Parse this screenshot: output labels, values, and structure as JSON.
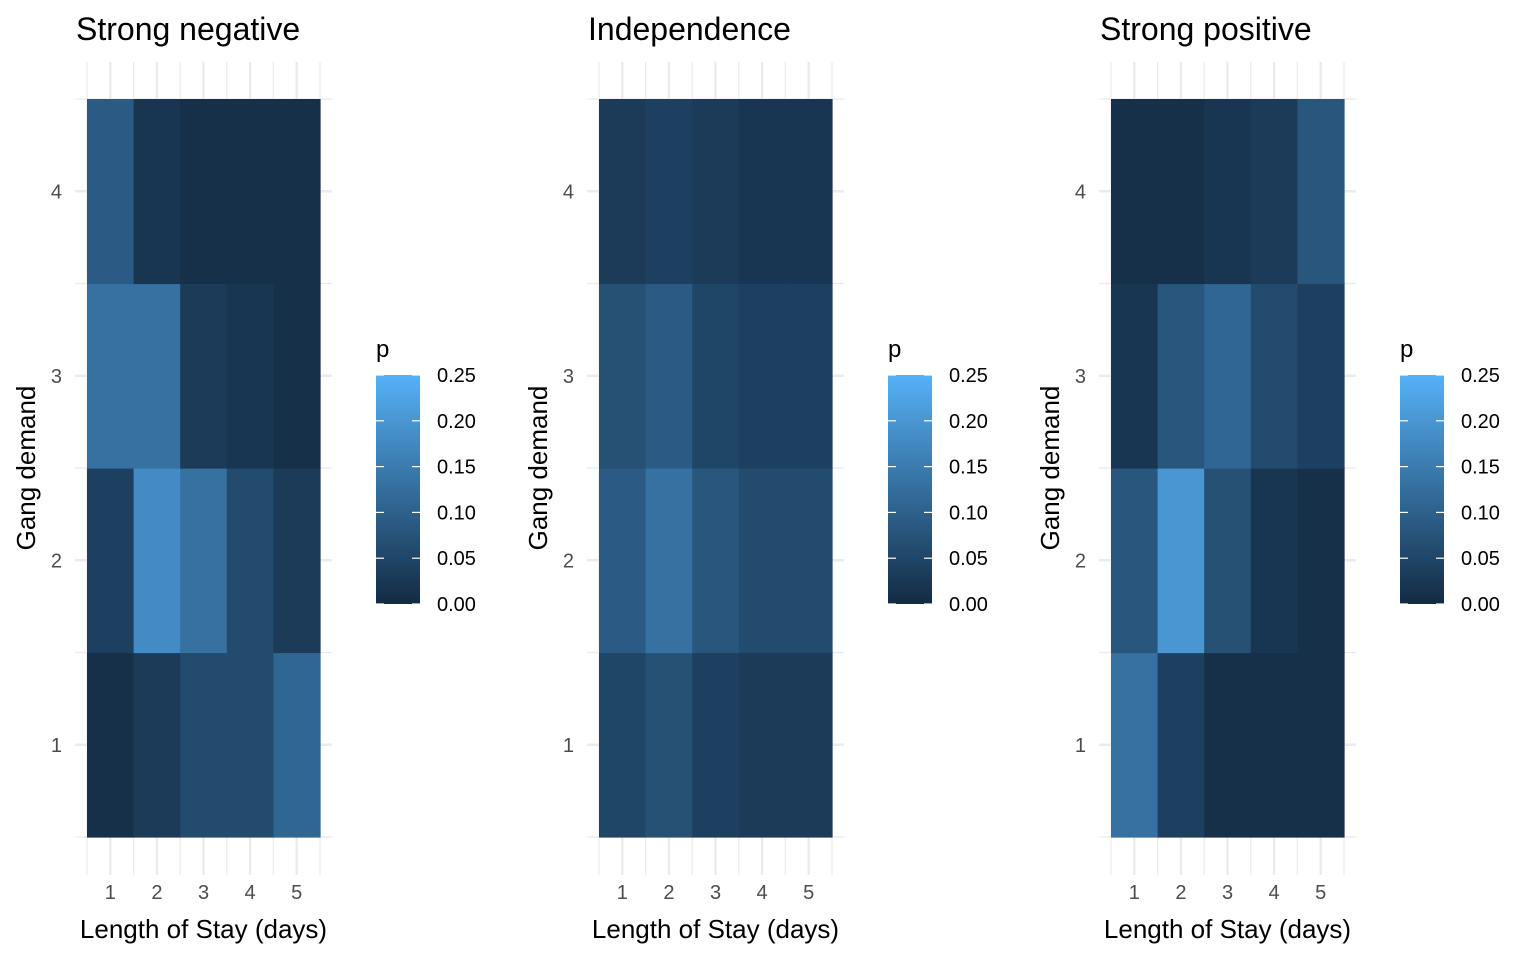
{
  "chart_data": [
    {
      "type": "heatmap",
      "title": "Strong negative",
      "xlabel": "Length of Stay (days)",
      "ylabel": "Gang demand",
      "x": [
        1,
        2,
        3,
        4,
        5
      ],
      "y": [
        1,
        2,
        3,
        4
      ],
      "values": [
        [
          0.01,
          0.03,
          0.06,
          0.06,
          0.11
        ],
        [
          0.04,
          0.18,
          0.13,
          0.06,
          0.03
        ],
        [
          0.13,
          0.13,
          0.03,
          0.02,
          0.01
        ],
        [
          0.09,
          0.02,
          0.01,
          0.01,
          0.01
        ]
      ],
      "legend": {
        "title": "p",
        "range": [
          0,
          0.25
        ],
        "ticks": [
          "0.00",
          "0.05",
          "0.10",
          "0.15",
          "0.20",
          "0.25"
        ],
        "position": "right"
      },
      "grid": true
    },
    {
      "type": "heatmap",
      "title": "Independence",
      "xlabel": "Length of Stay (days)",
      "ylabel": "Gang demand",
      "x": [
        1,
        2,
        3,
        4,
        5
      ],
      "y": [
        1,
        2,
        3,
        4
      ],
      "values": [
        [
          0.05,
          0.07,
          0.04,
          0.03,
          0.03
        ],
        [
          0.09,
          0.13,
          0.08,
          0.06,
          0.06
        ],
        [
          0.07,
          0.09,
          0.05,
          0.04,
          0.04
        ],
        [
          0.03,
          0.04,
          0.03,
          0.02,
          0.02
        ]
      ],
      "legend": {
        "title": "p",
        "range": [
          0,
          0.25
        ],
        "ticks": [
          "0.00",
          "0.05",
          "0.10",
          "0.15",
          "0.20",
          "0.25"
        ],
        "position": "right"
      },
      "grid": true
    },
    {
      "type": "heatmap",
      "title": "Strong positive",
      "xlabel": "Length of Stay (days)",
      "ylabel": "Gang demand",
      "x": [
        1,
        2,
        3,
        4,
        5
      ],
      "y": [
        1,
        2,
        3,
        4
      ],
      "values": [
        [
          0.13,
          0.04,
          0.01,
          0.01,
          0.01
        ],
        [
          0.08,
          0.2,
          0.07,
          0.02,
          0.01
        ],
        [
          0.02,
          0.08,
          0.11,
          0.06,
          0.04
        ],
        [
          0.01,
          0.01,
          0.02,
          0.03,
          0.08
        ]
      ],
      "legend": {
        "title": "p",
        "range": [
          0,
          0.25
        ],
        "ticks": [
          "0.00",
          "0.05",
          "0.10",
          "0.15",
          "0.20",
          "0.25"
        ],
        "position": "right"
      },
      "grid": true
    }
  ],
  "colors": {
    "low": "#132B43",
    "high": "#56B1F7",
    "grid": "#ebebeb",
    "tick_text": "#4d4d4d"
  }
}
